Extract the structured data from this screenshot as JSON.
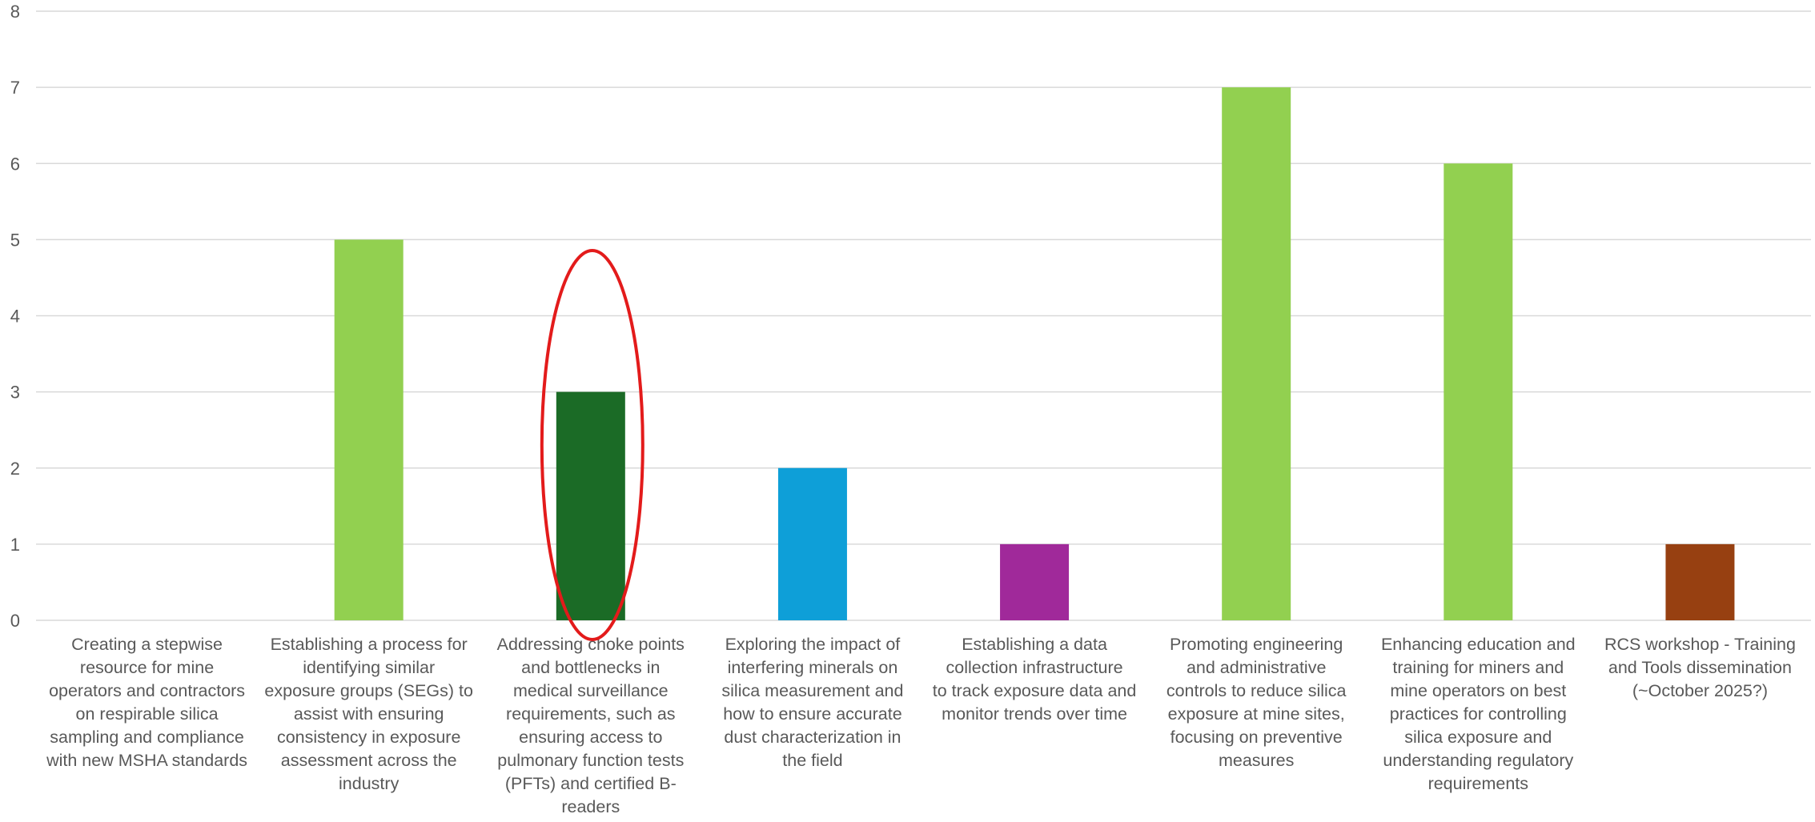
{
  "chart_data": {
    "type": "bar",
    "title": "",
    "xlabel": "",
    "ylabel": "",
    "ylim": [
      0,
      8
    ],
    "yticks": [
      0,
      1,
      2,
      3,
      4,
      5,
      6,
      7,
      8
    ],
    "grid": true,
    "legend": "none",
    "categories": [
      "Creating a stepwise resource for mine operators and contractors on respirable silica sampling and compliance with new MSHA standards",
      "Establishing a process for identifying similar exposure groups (SEGs) to assist with ensuring consistency in exposure assessment across the industry",
      "Addressing choke points and bottlenecks in medical surveillance requirements, such as ensuring access to pulmonary function tests (PFTs) and certified B-readers",
      "Exploring the impact of interfering minerals on silica measurement and how to ensure accurate dust characterization in the field",
      "Establishing a data collection infrastructure to track exposure data and monitor trends over time",
      "Promoting engineering and administrative controls to reduce silica exposure at mine sites, focusing on preventive measures",
      "Enhancing education and training for miners and mine operators on best practices for controlling silica exposure and understanding regulatory requirements",
      "RCS workshop - Training and Tools dissemination (~October 2025?)"
    ],
    "category_lines": [
      [
        "Creating a stepwise",
        "resource for mine",
        "operators and contractors",
        "on respirable silica",
        "sampling and compliance",
        "with new MSHA standards"
      ],
      [
        "Establishing a process for",
        "identifying similar",
        "exposure groups (SEGs) to",
        "assist with ensuring",
        "consistency in exposure",
        "assessment across the",
        "industry"
      ],
      [
        "Addressing choke points",
        "and bottlenecks in",
        "medical surveillance",
        "requirements, such as",
        "ensuring access to",
        "pulmonary function tests",
        "(PFTs) and certified B-",
        "readers"
      ],
      [
        "Exploring the impact of",
        "interfering minerals on",
        "silica measurement and",
        "how to ensure accurate",
        "dust characterization in",
        "the field"
      ],
      [
        "Establishing a data",
        "collection infrastructure",
        "to track exposure data and",
        "monitor trends over time"
      ],
      [
        "Promoting engineering",
        "and administrative",
        "controls to reduce silica",
        "exposure at mine sites,",
        "focusing on preventive",
        "measures"
      ],
      [
        "Enhancing education and",
        "training for miners and",
        "mine operators on best",
        "practices for controlling",
        "silica exposure and",
        "understanding regulatory",
        "requirements"
      ],
      [
        "RCS workshop - Training",
        "and Tools dissemination",
        "(~October 2025?)"
      ]
    ],
    "values": [
      0,
      5,
      3,
      2,
      1,
      7,
      6,
      1
    ],
    "bar_colors": [
      "#92D050",
      "#92D050",
      "#1B6B26",
      "#0E9FD8",
      "#A0299A",
      "#92D050",
      "#92D050",
      "#974011"
    ],
    "annotations": [
      {
        "type": "ellipse",
        "target_category_index": 2,
        "color": "#E31B1B"
      }
    ],
    "gridline_color": "#D9D9D9",
    "axis_text_color": "#595959"
  }
}
